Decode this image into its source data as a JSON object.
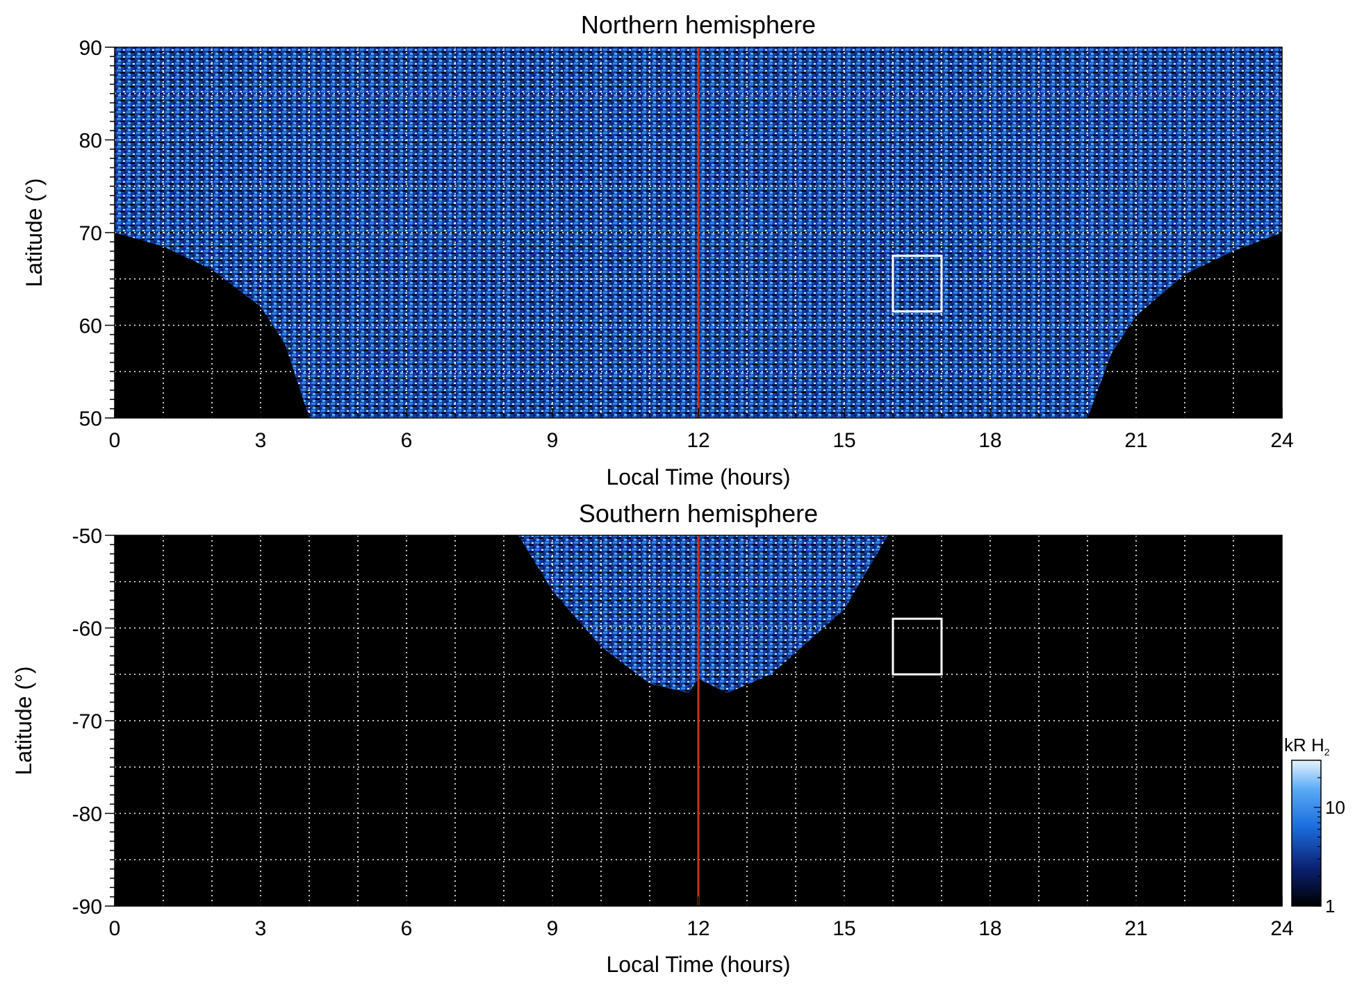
{
  "chart_data": [
    {
      "type": "heatmap",
      "title": "Northern hemisphere",
      "xlabel": "Local Time (hours)",
      "ylabel": "Latitude (°)",
      "xlim": [
        0,
        24
      ],
      "ylim": [
        50,
        90
      ],
      "x_ticks": [
        "0",
        "3",
        "6",
        "9",
        "12",
        "15",
        "18",
        "21",
        "24"
      ],
      "y_ticks": [
        "50",
        "60",
        "70",
        "80",
        "90"
      ],
      "grid": true,
      "noon_line": {
        "x": 12,
        "color": "#cc3311"
      },
      "box": {
        "x": [
          16,
          17
        ],
        "y": [
          61.5,
          67.5
        ],
        "color": "#ffffff"
      },
      "coverage_boundary": [
        {
          "lt": 0,
          "lat_min": 70
        },
        {
          "lt": 1,
          "lat_min": 68.5
        },
        {
          "lt": 2,
          "lat_min": 66
        },
        {
          "lt": 3,
          "lat_min": 62
        },
        {
          "lt": 3.5,
          "lat_min": 58
        },
        {
          "lt": 4,
          "lat_min": 50
        },
        {
          "lt": 20,
          "lat_min": 50
        },
        {
          "lt": 20.5,
          "lat_min": 57
        },
        {
          "lt": 21,
          "lat_min": 61
        },
        {
          "lt": 22,
          "lat_min": 65.5
        },
        {
          "lt": 23,
          "lat_min": 68
        },
        {
          "lt": 24,
          "lat_min": 70
        }
      ]
    },
    {
      "type": "heatmap",
      "title": "Southern hemisphere",
      "xlabel": "Local Time (hours)",
      "ylabel": "Latitude (°)",
      "xlim": [
        0,
        24
      ],
      "ylim": [
        -90,
        -50
      ],
      "x_ticks": [
        "0",
        "3",
        "6",
        "9",
        "12",
        "15",
        "18",
        "21",
        "24"
      ],
      "y_ticks": [
        "-50",
        "-60",
        "-70",
        "-80",
        "-90"
      ],
      "grid": true,
      "noon_line": {
        "x": 12,
        "color": "#cc3311"
      },
      "box": {
        "x": [
          16,
          17
        ],
        "y": [
          -65,
          -59
        ],
        "color": "#ffffff"
      },
      "coverage_boundary": [
        {
          "lt": 8.3,
          "lat_max": -50
        },
        {
          "lt": 9,
          "lat_max": -56
        },
        {
          "lt": 10,
          "lat_max": -62
        },
        {
          "lt": 11,
          "lat_max": -66
        },
        {
          "lt": 11.8,
          "lat_max": -67
        },
        {
          "lt": 12,
          "lat_max": -65.5
        },
        {
          "lt": 12.6,
          "lat_max": -67
        },
        {
          "lt": 13.5,
          "lat_max": -65
        },
        {
          "lt": 15,
          "lat_max": -58
        },
        {
          "lt": 15.9,
          "lat_max": -50
        }
      ]
    }
  ],
  "colorbar": {
    "label_main": "kR H",
    "label_sub": "2",
    "scale": "log",
    "range": [
      1,
      30
    ],
    "ticks": [
      "1",
      "10"
    ],
    "colors": [
      "#000000",
      "#0a1f6e",
      "#1c6ee0",
      "#5aaaf5",
      "#e6f4ff"
    ]
  }
}
